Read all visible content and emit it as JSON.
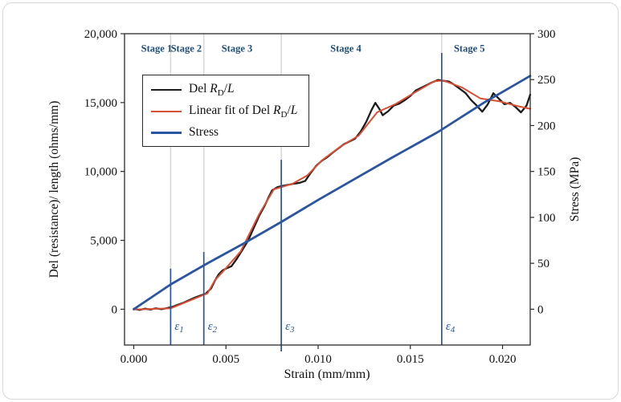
{
  "figure": {
    "background": "#ffffff",
    "border_color": "#d8d8d8",
    "frame_color": "#2b2b2b",
    "grid_color": "#d9d9d9"
  },
  "chart_data": {
    "type": "line",
    "title": "",
    "xlabel": "Strain (mm/mm)",
    "ylabel_left": "Del (resistance)/ length (ohms/mm)",
    "ylabel_right": "Stress (MPa)",
    "xlim": [
      -0.0005,
      0.0215
    ],
    "ylim_left": [
      -2600,
      20000
    ],
    "ylim_right": [
      -39,
      300
    ],
    "x_ticks": [
      0.0,
      0.005,
      0.01,
      0.015,
      0.02
    ],
    "x_tick_labels": [
      "0.000",
      "0.005",
      "0.010",
      "0.015",
      "0.020"
    ],
    "y_ticks_left": [
      0,
      5000,
      10000,
      15000,
      20000
    ],
    "y_tick_labels_left": [
      "0",
      "5,000",
      "10,000",
      "15,000",
      "20,000"
    ],
    "y_ticks_right": [
      0,
      50,
      100,
      150,
      200,
      250,
      300
    ],
    "y_tick_labels_right": [
      "0",
      "50",
      "100",
      "150",
      "200",
      "250",
      "300"
    ],
    "grid_x": [
      0.002,
      0.0038,
      0.008,
      0.0167
    ],
    "series": [
      {
        "name": "Del R_D/L",
        "axis": "left",
        "color": "#1c1c1c",
        "width": 2.3,
        "points": [
          [
            0.0,
            30
          ],
          [
            0.0003,
            -50
          ],
          [
            0.0006,
            40
          ],
          [
            0.0009,
            -20
          ],
          [
            0.0012,
            60
          ],
          [
            0.0015,
            0
          ],
          [
            0.0018,
            80
          ],
          [
            0.0021,
            170
          ],
          [
            0.0024,
            330
          ],
          [
            0.0027,
            470
          ],
          [
            0.003,
            650
          ],
          [
            0.0033,
            830
          ],
          [
            0.0036,
            980
          ],
          [
            0.0039,
            1120
          ],
          [
            0.0042,
            1520
          ],
          [
            0.0044,
            2080
          ],
          [
            0.0046,
            2520
          ],
          [
            0.0048,
            2800
          ],
          [
            0.005,
            2950
          ],
          [
            0.0053,
            3120
          ],
          [
            0.0056,
            3680
          ],
          [
            0.0059,
            4320
          ],
          [
            0.0062,
            4980
          ],
          [
            0.0065,
            5880
          ],
          [
            0.0068,
            6780
          ],
          [
            0.0071,
            7520
          ],
          [
            0.0073,
            8080
          ],
          [
            0.0075,
            8620
          ],
          [
            0.0078,
            8870
          ],
          [
            0.0081,
            8960
          ],
          [
            0.0084,
            9040
          ],
          [
            0.0087,
            9120
          ],
          [
            0.009,
            9180
          ],
          [
            0.0093,
            9320
          ],
          [
            0.0096,
            9900
          ],
          [
            0.0099,
            10420
          ],
          [
            0.0102,
            10780
          ],
          [
            0.0105,
            11040
          ],
          [
            0.0108,
            11380
          ],
          [
            0.0111,
            11680
          ],
          [
            0.0114,
            11980
          ],
          [
            0.0117,
            12180
          ],
          [
            0.012,
            12380
          ],
          [
            0.0123,
            12880
          ],
          [
            0.0126,
            13580
          ],
          [
            0.0129,
            14480
          ],
          [
            0.0131,
            14980
          ],
          [
            0.0133,
            14580
          ],
          [
            0.0135,
            14080
          ],
          [
            0.0138,
            14380
          ],
          [
            0.0141,
            14780
          ],
          [
            0.0144,
            14920
          ],
          [
            0.0147,
            15180
          ],
          [
            0.015,
            15480
          ],
          [
            0.0153,
            15880
          ],
          [
            0.0156,
            16080
          ],
          [
            0.0159,
            16280
          ],
          [
            0.0162,
            16480
          ],
          [
            0.0165,
            16640
          ],
          [
            0.0168,
            16580
          ],
          [
            0.0171,
            16520
          ],
          [
            0.0174,
            16280
          ],
          [
            0.0177,
            15980
          ],
          [
            0.018,
            15680
          ],
          [
            0.0183,
            15180
          ],
          [
            0.0186,
            14780
          ],
          [
            0.0189,
            14340
          ],
          [
            0.0192,
            14880
          ],
          [
            0.0195,
            15680
          ],
          [
            0.0198,
            15280
          ],
          [
            0.0201,
            14880
          ],
          [
            0.0204,
            14980
          ],
          [
            0.0207,
            14680
          ],
          [
            0.021,
            14290
          ],
          [
            0.0213,
            14780
          ],
          [
            0.0215,
            15580
          ]
        ]
      },
      {
        "name": "Linear fit of Del R_D/L",
        "axis": "left",
        "color": "#d94f33",
        "width": 2.0,
        "points": [
          [
            0.0,
            -20
          ],
          [
            0.002,
            60
          ],
          [
            0.004,
            1150
          ],
          [
            0.0044,
            2100
          ],
          [
            0.005,
            2980
          ],
          [
            0.0058,
            4200
          ],
          [
            0.0068,
            6900
          ],
          [
            0.0076,
            8700
          ],
          [
            0.0086,
            9100
          ],
          [
            0.0094,
            9700
          ],
          [
            0.0102,
            10800
          ],
          [
            0.0112,
            11800
          ],
          [
            0.0122,
            12600
          ],
          [
            0.0132,
            14300
          ],
          [
            0.0142,
            14900
          ],
          [
            0.0152,
            15700
          ],
          [
            0.0163,
            16550
          ],
          [
            0.0168,
            16600
          ],
          [
            0.0178,
            16100
          ],
          [
            0.0188,
            15300
          ],
          [
            0.0198,
            15100
          ],
          [
            0.0208,
            14750
          ],
          [
            0.0215,
            14550
          ]
        ]
      },
      {
        "name": "Stress",
        "axis": "right",
        "color": "#2b55a0",
        "width": 2.8,
        "points": [
          [
            0.0,
            0
          ],
          [
            0.002,
            27
          ],
          [
            0.004,
            50
          ],
          [
            0.006,
            72
          ],
          [
            0.008,
            95
          ],
          [
            0.01,
            119
          ],
          [
            0.012,
            142
          ],
          [
            0.014,
            165
          ],
          [
            0.0165,
            193
          ],
          [
            0.019,
            225
          ],
          [
            0.0215,
            254
          ]
        ]
      }
    ],
    "marker_lines": {
      "color": "#2b55a0",
      "label_y": -1500,
      "items": [
        {
          "x": 0.002,
          "y_top": 2950,
          "symbol": "ε",
          "sub": "1",
          "overhang": 0
        },
        {
          "x": 0.0038,
          "y_top": 4150,
          "symbol": "ε",
          "sub": "2",
          "overhang": 0
        },
        {
          "x": 0.008,
          "y_top": 10850,
          "symbol": "ε",
          "sub": "3",
          "overhang": 8
        },
        {
          "x": 0.0167,
          "y_top": 18600,
          "symbol": "ε",
          "sub": "4",
          "overhang": 0
        }
      ]
    },
    "stage_labels": {
      "color": "#1f4e7a",
      "y": 18700,
      "items": [
        {
          "text": "Stage 1",
          "x": 0.00124
        },
        {
          "text": "Stage 2",
          "x": 0.00285
        },
        {
          "text": "Stage 3",
          "x": 0.0056
        },
        {
          "text": "Stage 4",
          "x": 0.0115
        },
        {
          "text": "Stage 5",
          "x": 0.0182
        }
      ]
    }
  },
  "legend": {
    "items": [
      {
        "color": "#1c1c1c",
        "thickness": 2.6,
        "segments": [
          {
            "t": "Del "
          },
          {
            "t": "R",
            "italic": true
          },
          {
            "t": "D",
            "sub": true
          },
          {
            "t": "/"
          },
          {
            "t": "L",
            "italic": true
          }
        ]
      },
      {
        "color": "#d94f33",
        "thickness": 2.2,
        "segments": [
          {
            "t": "Linear fit of Del "
          },
          {
            "t": "R",
            "italic": true
          },
          {
            "t": "D",
            "sub": true
          },
          {
            "t": "/"
          },
          {
            "t": "L",
            "italic": true
          }
        ]
      },
      {
        "color": "#2b55a0",
        "thickness": 3.2,
        "segments": [
          {
            "t": "Stress"
          }
        ]
      }
    ]
  }
}
